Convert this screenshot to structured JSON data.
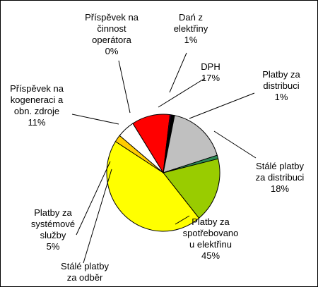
{
  "chart_data": {
    "type": "pie",
    "slices": [
      {
        "label": [
          "Dań z",
          "elektřiny",
          "1%"
        ],
        "value": 1,
        "color": "#000000"
      },
      {
        "label": [
          "DPH",
          "17%"
        ],
        "value": 17,
        "color": "#c0c0c0"
      },
      {
        "label": [
          "Platby za",
          "distribuci",
          "1%"
        ],
        "value": 1,
        "color": "#2e8b57"
      },
      {
        "label": [
          "Stálé platby",
          "za distribuci",
          "18%"
        ],
        "value": 18,
        "color": "#99cc00"
      },
      {
        "label": [
          "Platby za",
          "spotřebovano",
          "u elektřinu",
          "45%"
        ],
        "value": 45,
        "color": "#ffff00"
      },
      {
        "label": [
          "Stálé platby",
          "za odběr"
        ],
        "value": 2,
        "color": "#ffcc00"
      },
      {
        "label": [
          "Platby za",
          "systémové",
          "služby",
          "5%"
        ],
        "value": 5,
        "color": "#ffffff"
      },
      {
        "label": [
          "Příspěvek na",
          "kogeneraci a",
          "obn. zdroje",
          "11%"
        ],
        "value": 11,
        "color": "#ff0000"
      },
      {
        "label": [
          "Příspěvek na",
          "činnost",
          "operátora",
          "0%"
        ],
        "value": 0.3,
        "color": "#800080"
      }
    ],
    "legend": "none"
  }
}
